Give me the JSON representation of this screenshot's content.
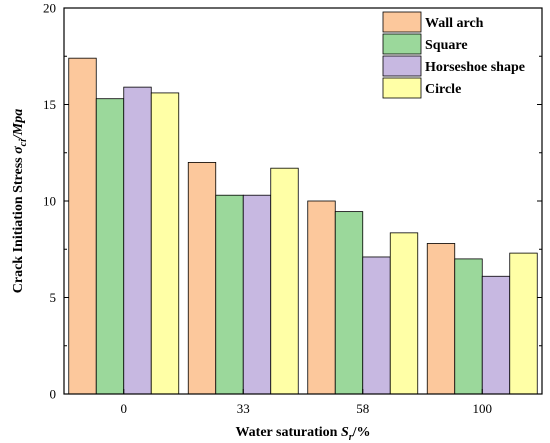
{
  "chart_data": {
    "type": "bar",
    "categories": [
      "0",
      "33",
      "58",
      "100"
    ],
    "series": [
      {
        "name": "Wall arch",
        "values": [
          17.4,
          12.0,
          10.0,
          7.8
        ],
        "color": "#fcc89c"
      },
      {
        "name": "Square",
        "values": [
          15.3,
          10.3,
          9.45,
          7.0
        ],
        "color": "#9bd89b"
      },
      {
        "name": "Horseshoe shape",
        "values": [
          15.9,
          10.3,
          7.1,
          6.1
        ],
        "color": "#c7b8e1"
      },
      {
        "name": "Circle",
        "values": [
          15.6,
          11.7,
          8.35,
          7.3
        ],
        "color": "#ffffa6"
      }
    ],
    "xlabel": {
      "main": "Water saturation ",
      "symbol": "S",
      "subscript": "r",
      "unit": "/%"
    },
    "ylabel": {
      "main": "Crack Initiation Stress ",
      "symbol": "σ",
      "subscript": "ci",
      "unit": "/Mpa"
    },
    "ylim": [
      0,
      20
    ],
    "yticks": [
      "0",
      "5",
      "10",
      "15",
      "20"
    ],
    "grid": false,
    "legend_position": "top-right"
  }
}
